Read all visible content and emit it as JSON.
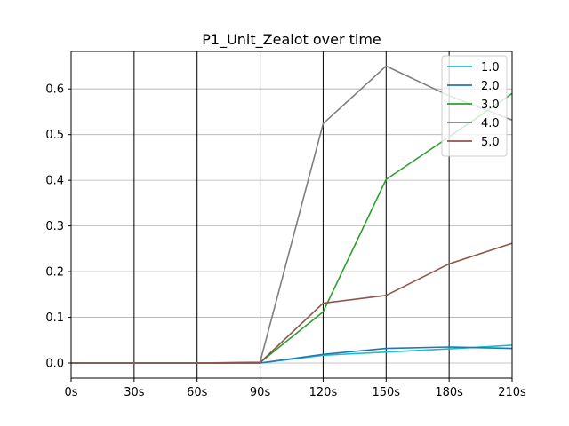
{
  "chart_data": {
    "type": "line",
    "title": "P1_Unit_Zealot over time",
    "xlabel": "",
    "ylabel": "",
    "x": [
      "0s",
      "30s",
      "60s",
      "90s",
      "120s",
      "150s",
      "180s",
      "210s"
    ],
    "x_values": [
      0,
      30,
      60,
      90,
      120,
      150,
      180,
      210
    ],
    "xlim": [
      0,
      210
    ],
    "ylim": [
      -0.033,
      0.682
    ],
    "yticks": [
      0.0,
      0.1,
      0.2,
      0.3,
      0.4,
      0.5,
      0.6
    ],
    "ytick_labels": [
      "0.0",
      "0.1",
      "0.2",
      "0.3",
      "0.4",
      "0.5",
      "0.6"
    ],
    "grid": {
      "x": true,
      "x_color": "#000000",
      "y": true,
      "y_color": "#b0b0b0"
    },
    "legend_position": "top-right",
    "series": [
      {
        "name": "1.0",
        "color": "#17becf",
        "values": [
          0,
          0,
          0,
          0,
          0.017,
          0.024,
          0.031,
          0.039
        ]
      },
      {
        "name": "2.0",
        "color": "#1f77b4",
        "values": [
          0,
          0,
          0,
          0,
          0.019,
          0.032,
          0.035,
          0.032
        ]
      },
      {
        "name": "3.0",
        "color": "#2ca02c",
        "values": [
          0,
          0,
          0,
          0.001,
          0.112,
          0.402,
          0.495,
          0.59
        ]
      },
      {
        "name": "4.0",
        "color": "#7f7f7f",
        "values": [
          0,
          0,
          0,
          0.002,
          0.524,
          0.65,
          0.585,
          0.532
        ]
      },
      {
        "name": "5.0",
        "color": "#8c564b",
        "values": [
          0,
          0,
          0,
          0.001,
          0.131,
          0.148,
          0.217,
          0.262
        ]
      }
    ]
  }
}
